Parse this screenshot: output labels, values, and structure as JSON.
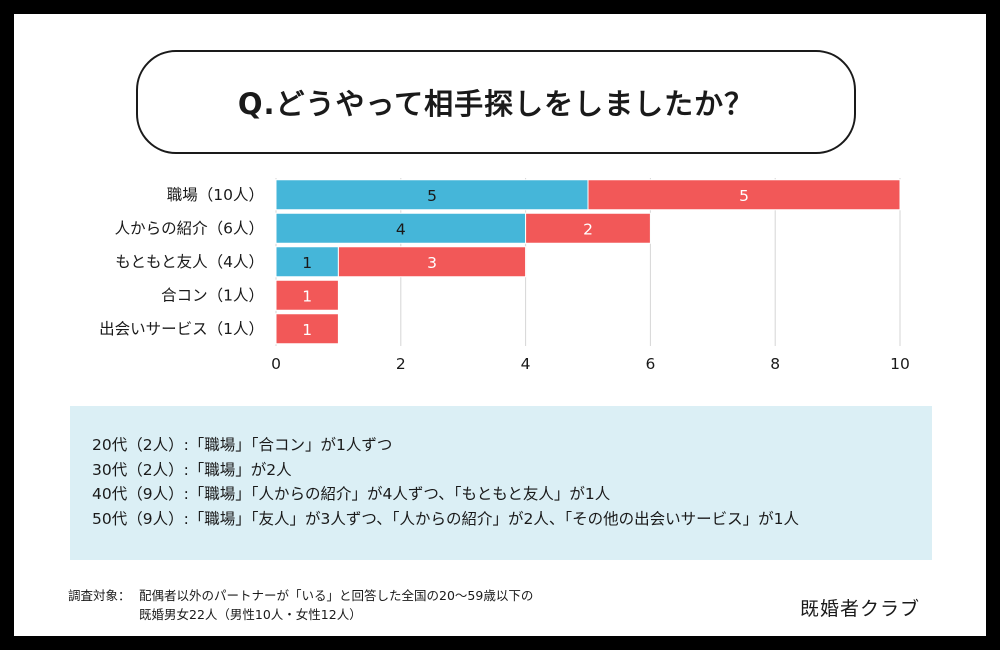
{
  "title": "Q.どうやって相手探しをしましたか？",
  "chart_data": {
    "type": "bar",
    "orientation": "horizontal",
    "stacked": true,
    "categories": [
      "職場（10人）",
      "人からの紹介（6人）",
      "もともと友人（4人）",
      "合コン（1人）",
      "出会いサービス（1人）"
    ],
    "series": [
      {
        "name": "series-blue",
        "color": "#45b6d9",
        "values": [
          5,
          4,
          1,
          0,
          0
        ]
      },
      {
        "name": "series-red",
        "color": "#f25858",
        "values": [
          5,
          2,
          3,
          1,
          1
        ]
      }
    ],
    "xlim": [
      0,
      10
    ],
    "xticks": [
      0,
      2,
      4,
      6,
      8,
      10
    ],
    "grid": true,
    "xlabel": "",
    "ylabel": ""
  },
  "notes": [
    "20代（2人）:「職場」「合コン」が1人ずつ",
    "30代（2人）:「職場」が2人",
    "40代（9人）:「職場」「人からの紹介」が4人ずつ、「もともと友人」が1人",
    "50代（9人）:「職場」「友人」が3人ずつ、「人からの紹介」が2人、「その他の出会いサービス」が1人"
  ],
  "footnote": {
    "label": "調査対象：",
    "line1": "配偶者以外のパートナーが「いる」と回答した全国の20〜59歳以下の",
    "line2": "既婚男女22人（男性10人・女性12人）"
  },
  "brand": "既婚者クラブ"
}
